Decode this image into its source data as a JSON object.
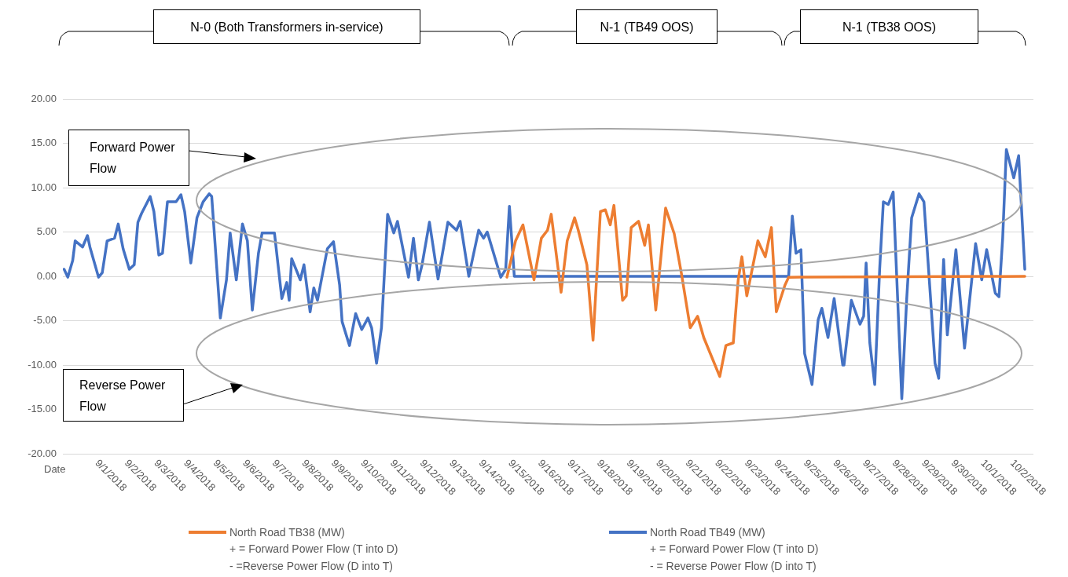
{
  "chart_data": {
    "type": "line",
    "xlabel": "Date",
    "annotations": [
      "N-0 (Both Transformers in-service)",
      "N-1 (TB49 OOS)",
      "N-1 (TB38 OOS)",
      "Forward Power Flow",
      "Reverse Power Flow",
      "+ = Forward Power Flow (T into D)",
      "- =Reverse Power Flow (D into T)",
      "+ = Forward Power Flow (T into D)",
      "- = Reverse Power Flow (D into T)"
    ],
    "xlim": [
      "2018-08-30T18:00",
      "2018-10-02T15:00"
    ],
    "xticks": [
      {
        "value": "2018-09-01",
        "label": "9/1/2018"
      },
      {
        "value": "2018-09-02",
        "label": "9/2/2018"
      },
      {
        "value": "2018-09-03",
        "label": "9/3/2018"
      },
      {
        "value": "2018-09-04",
        "label": "9/4/2018"
      },
      {
        "value": "2018-09-05",
        "label": "9/5/2018"
      },
      {
        "value": "2018-09-06",
        "label": "9/6/2018"
      },
      {
        "value": "2018-09-07",
        "label": "9/7/2018"
      },
      {
        "value": "2018-09-08",
        "label": "9/8/2018"
      },
      {
        "value": "2018-09-09",
        "label": "9/9/2018"
      },
      {
        "value": "2018-09-10",
        "label": "9/10/2018"
      },
      {
        "value": "2018-09-11",
        "label": "9/11/2018"
      },
      {
        "value": "2018-09-12",
        "label": "9/12/2018"
      },
      {
        "value": "2018-09-13",
        "label": "9/13/2018"
      },
      {
        "value": "2018-09-14",
        "label": "9/14/2018"
      },
      {
        "value": "2018-09-15",
        "label": "9/15/2018"
      },
      {
        "value": "2018-09-16",
        "label": "9/16/2018"
      },
      {
        "value": "2018-09-17",
        "label": "9/17/2018"
      },
      {
        "value": "2018-09-18",
        "label": "9/18/2018"
      },
      {
        "value": "2018-09-19",
        "label": "9/19/2018"
      },
      {
        "value": "2018-09-20",
        "label": "9/20/2018"
      },
      {
        "value": "2018-09-21",
        "label": "9/21/2018"
      },
      {
        "value": "2018-09-22",
        "label": "9/22/2018"
      },
      {
        "value": "2018-09-23",
        "label": "9/23/2018"
      },
      {
        "value": "2018-09-24",
        "label": "9/24/2018"
      },
      {
        "value": "2018-09-25",
        "label": "9/25/2018"
      },
      {
        "value": "2018-09-26",
        "label": "9/26/2018"
      },
      {
        "value": "2018-09-27",
        "label": "9/27/2018"
      },
      {
        "value": "2018-09-28",
        "label": "9/28/2018"
      },
      {
        "value": "2018-09-29",
        "label": "9/29/2018"
      },
      {
        "value": "2018-09-30",
        "label": "9/30/2018"
      },
      {
        "value": "2018-10-01",
        "label": "10/1/2018"
      },
      {
        "value": "2018-10-02",
        "label": "10/2/2018"
      }
    ],
    "ylim": [
      -20,
      20
    ],
    "yticks": [
      {
        "value": -20,
        "label": "-20.00"
      },
      {
        "value": -15,
        "label": "-15.00"
      },
      {
        "value": -10,
        "label": "-10.00"
      },
      {
        "value": -5,
        "label": "-5.00"
      },
      {
        "value": 0,
        "label": "0.00"
      },
      {
        "value": 5,
        "label": "5.00"
      },
      {
        "value": 10,
        "label": "10.00"
      },
      {
        "value": 15,
        "label": "15.00"
      },
      {
        "value": 20,
        "label": "20.00"
      }
    ],
    "grid": "y",
    "legend": "bottom",
    "marker": "none",
    "line_style": "solid",
    "series": [
      {
        "name": "North Road TB38 (MW)",
        "color": "#ed7d31",
        "x": [
          "2018-09-14T19:00",
          "2018-09-15T02:00",
          "2018-09-15T08:00",
          "2018-09-15T17:00",
          "2018-09-15T23:00",
          "2018-09-16T04:00",
          "2018-09-16T07:00",
          "2018-09-16T15:00",
          "2018-09-16T20:00",
          "2018-09-17T02:00",
          "2018-09-17T05:00",
          "2018-09-17T12:00",
          "2018-09-17T17:00",
          "2018-09-17T23:00",
          "2018-09-18T03:00",
          "2018-09-18T07:00",
          "2018-09-18T10:00",
          "2018-09-18T17:00",
          "2018-09-18T20:00",
          "2018-09-19T00:00",
          "2018-09-19T06:00",
          "2018-09-19T11:00",
          "2018-09-19T14:00",
          "2018-09-19T20:00",
          "2018-09-20T04:00",
          "2018-09-20T11:00",
          "2018-09-20T17:00",
          "2018-09-21T00:00",
          "2018-09-21T06:00",
          "2018-09-21T11:00",
          "2018-09-22T00:00",
          "2018-09-22T05:00",
          "2018-09-22T11:00",
          "2018-09-22T15:00",
          "2018-09-22T18:00",
          "2018-09-22T22:00",
          "2018-09-23T07:00",
          "2018-09-23T13:00",
          "2018-09-23T18:00",
          "2018-09-23T22:00",
          "2018-09-24T05:00",
          "2018-09-24T08:00",
          "2018-10-02T08:00"
        ],
        "values": [
          -0.1,
          4.0,
          5.8,
          -0.4,
          4.3,
          5.2,
          7.0,
          -1.8,
          4.0,
          6.6,
          5.2,
          1.3,
          -7.2,
          7.3,
          7.5,
          5.8,
          8.0,
          -2.7,
          -2.2,
          5.5,
          6.2,
          3.5,
          5.8,
          -3.8,
          7.7,
          4.8,
          0.2,
          -5.8,
          -4.5,
          -6.9,
          -11.3,
          -7.8,
          -7.5,
          -0.4,
          2.2,
          -2.2,
          4.0,
          2.2,
          5.5,
          -4.0,
          -1.0,
          -0.1,
          0
        ]
      },
      {
        "name": "North Road TB49 (MW)",
        "color": "#4472c4",
        "x": [
          "2018-08-30T19:00",
          "2018-08-30T22:00",
          "2018-08-31T02:00",
          "2018-08-31T04:00",
          "2018-08-31T10:00",
          "2018-08-31T14:00",
          "2018-08-31T16:00",
          "2018-08-31T23:00",
          "2018-09-01T02:00",
          "2018-09-01T06:00",
          "2018-09-01T12:00",
          "2018-09-01T15:00",
          "2018-09-01T19:00",
          "2018-09-02T00:00",
          "2018-09-02T04:00",
          "2018-09-02T07:00",
          "2018-09-02T10:00",
          "2018-09-02T17:00",
          "2018-09-02T20:00",
          "2018-09-03T00:00",
          "2018-09-03T03:00",
          "2018-09-03T07:00",
          "2018-09-03T14:00",
          "2018-09-03T18:00",
          "2018-09-03T21:00",
          "2018-09-04T02:00",
          "2018-09-04T07:00",
          "2018-09-04T12:00",
          "2018-09-04T17:00",
          "2018-09-04T19:00",
          "2018-09-05T02:00",
          "2018-09-05T07:00",
          "2018-09-05T10:00",
          "2018-09-05T15:00",
          "2018-09-05T20:00",
          "2018-09-06T00:00",
          "2018-09-06T04:00",
          "2018-09-06T09:00",
          "2018-09-06T12:00",
          "2018-09-06T22:00",
          "2018-09-07T04:00",
          "2018-09-07T08:00",
          "2018-09-07T10:00",
          "2018-09-07T12:00",
          "2018-09-07T19:00",
          "2018-09-07T22:00",
          "2018-09-08T03:00",
          "2018-09-08T06:00",
          "2018-09-08T09:00",
          "2018-09-08T17:00",
          "2018-09-08T22:00",
          "2018-09-09T03:00",
          "2018-09-09T05:00",
          "2018-09-09T11:00",
          "2018-09-09T16:00",
          "2018-09-09T21:00",
          "2018-09-10T02:00",
          "2018-09-10T05:00",
          "2018-09-10T09:00",
          "2018-09-10T13:00",
          "2018-09-10T18:00",
          "2018-09-10T23:00",
          "2018-09-11T02:00",
          "2018-09-11T11:00",
          "2018-09-11T15:00",
          "2018-09-11T19:00",
          "2018-09-11T22:00",
          "2018-09-12T04:00",
          "2018-09-12T11:00",
          "2018-09-12T19:00",
          "2018-09-13T02:00",
          "2018-09-13T05:00",
          "2018-09-13T12:00",
          "2018-09-13T20:00",
          "2018-09-14T00:00",
          "2018-09-14T03:00",
          "2018-09-14T14:00",
          "2018-09-14T18:00",
          "2018-09-14T21:00",
          "2018-09-15T01:00",
          "2018-09-24T08:00",
          "2018-09-24T11:00",
          "2018-09-24T14:00",
          "2018-09-24T18:00",
          "2018-09-24T21:00",
          "2018-09-25T03:00",
          "2018-09-25T08:00",
          "2018-09-25T11:00",
          "2018-09-25T16:00",
          "2018-09-25T21:00",
          "2018-09-26T04:00",
          "2018-09-26T05:00",
          "2018-09-26T11:00",
          "2018-09-26T18:00",
          "2018-09-26T21:00",
          "2018-09-26T23:00",
          "2018-09-27T02:00",
          "2018-09-27T06:00",
          "2018-09-27T10:00",
          "2018-09-27T13:00",
          "2018-09-27T17:00",
          "2018-09-27T21:00",
          "2018-09-28T04:00",
          "2018-09-28T08:00",
          "2018-09-28T12:00",
          "2018-09-28T18:00",
          "2018-09-28T22:00",
          "2018-09-29T07:00",
          "2018-09-29T10:00",
          "2018-09-29T14:00",
          "2018-09-29T17:00",
          "2018-09-30T00:00",
          "2018-09-30T07:00",
          "2018-09-30T16:00",
          "2018-09-30T21:00",
          "2018-10-01T01:00",
          "2018-10-01T08:00",
          "2018-10-01T11:00",
          "2018-10-01T14:00",
          "2018-10-01T17:00",
          "2018-10-01T23:00",
          "2018-10-02T03:00",
          "2018-10-02T08:00"
        ],
        "values": [
          0.8,
          -0.1,
          1.8,
          4.0,
          3.3,
          4.6,
          3.3,
          -0.1,
          0.4,
          4.0,
          4.3,
          5.9,
          3.1,
          0.8,
          1.3,
          6.1,
          7.1,
          9.0,
          7.3,
          2.4,
          2.6,
          8.4,
          8.4,
          9.2,
          7.3,
          1.5,
          6.6,
          8.4,
          9.3,
          9.0,
          -4.7,
          -0.4,
          4.9,
          -0.4,
          5.9,
          4.0,
          -3.8,
          2.6,
          4.9,
          4.9,
          -2.5,
          -0.7,
          -2.7,
          2.0,
          -0.4,
          1.3,
          -4.0,
          -1.3,
          -2.7,
          3.1,
          3.9,
          -1.0,
          -5.1,
          -7.8,
          -4.2,
          -6.0,
          -4.7,
          -5.8,
          -9.8,
          -5.8,
          7.0,
          4.9,
          6.2,
          -0.1,
          4.3,
          -0.4,
          1.3,
          6.1,
          -0.3,
          6.1,
          5.2,
          6.2,
          0,
          5.2,
          4.3,
          5.0,
          -0.1,
          0.8,
          7.9,
          0,
          0,
          6.8,
          2.6,
          3.0,
          -8.7,
          -12.2,
          -4.9,
          -3.6,
          -6.9,
          -2.5,
          -10.0,
          -10.0,
          -2.7,
          -5.4,
          -4.5,
          1.5,
          -7.5,
          -12.2,
          0.8,
          8.4,
          8.1,
          9.5,
          -13.8,
          -2.5,
          6.6,
          9.3,
          8.4,
          -9.8,
          -11.5,
          1.9,
          -6.6,
          3.0,
          -8.1,
          3.7,
          -0.4,
          3.0,
          -1.9,
          -2.3,
          4.3,
          14.3,
          11.1,
          13.6,
          0.8
        ]
      }
    ]
  }
}
